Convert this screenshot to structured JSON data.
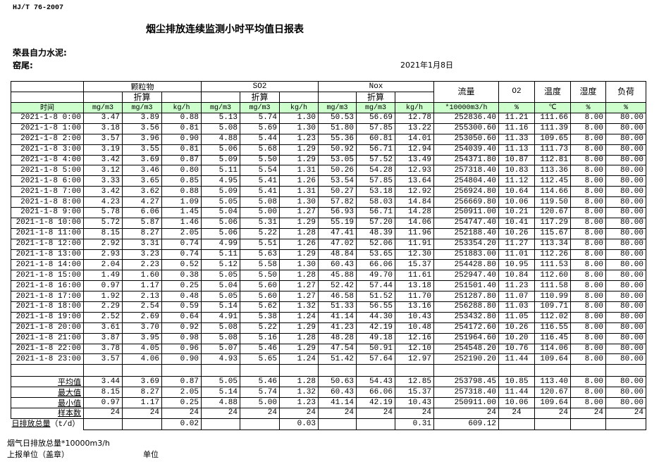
{
  "header": {
    "standard": "HJ/T  76-2007",
    "title": "烟尘排放连续监测小时平均值日报表",
    "company": "荣县自力水泥:",
    "kiln": "窑尾:",
    "date": "2021年1月8日"
  },
  "table": {
    "groups": [
      "颗粒物",
      "SO2",
      "Nox"
    ],
    "converted_label": "折算",
    "single_headers": [
      "流量",
      "O2",
      "温度",
      "湿度",
      "负荷"
    ],
    "time_label": "时间",
    "units": [
      "mg/m3",
      "mg/m3",
      "kg/h",
      "mg/m3",
      "mg/m3",
      "kg/h",
      "mg/m3",
      "mg/m3",
      "kg/h",
      "*10000m3/h",
      "%",
      "℃",
      "%",
      "%"
    ],
    "header_bg": "#ccffcc",
    "rows": [
      [
        "2021-1-8 0:00",
        "3.47",
        "3.89",
        "0.88",
        "5.13",
        "5.74",
        "1.30",
        "50.53",
        "56.69",
        "12.78",
        "252836.40",
        "11.21",
        "111.66",
        "8.00",
        "80.00"
      ],
      [
        "2021-1-8 1:00",
        "3.18",
        "3.56",
        "0.81",
        "5.08",
        "5.69",
        "1.30",
        "51.80",
        "57.85",
        "13.22",
        "255300.60",
        "11.16",
        "111.39",
        "8.00",
        "80.00"
      ],
      [
        "2021-1-8 2:00",
        "3.57",
        "3.96",
        "0.90",
        "4.88",
        "5.44",
        "1.23",
        "55.36",
        "60.81",
        "14.01",
        "253050.60",
        "11.33",
        "109.65",
        "8.00",
        "80.00"
      ],
      [
        "2021-1-8 3:00",
        "3.19",
        "3.55",
        "0.81",
        "5.06",
        "5.68",
        "1.29",
        "50.92",
        "56.71",
        "12.94",
        "254039.40",
        "11.13",
        "111.73",
        "8.00",
        "80.00"
      ],
      [
        "2021-1-8 4:00",
        "3.42",
        "3.69",
        "0.87",
        "5.09",
        "5.50",
        "1.29",
        "53.05",
        "57.52",
        "13.49",
        "254371.80",
        "10.87",
        "112.81",
        "8.00",
        "80.00"
      ],
      [
        "2021-1-8 5:00",
        "3.12",
        "3.46",
        "0.80",
        "5.11",
        "5.54",
        "1.31",
        "50.26",
        "54.28",
        "12.93",
        "257318.40",
        "10.83",
        "113.36",
        "8.00",
        "80.00"
      ],
      [
        "2021-1-8 6:00",
        "3.33",
        "3.65",
        "0.85",
        "4.95",
        "5.41",
        "1.26",
        "53.54",
        "57.85",
        "13.64",
        "254804.40",
        "11.12",
        "112.45",
        "8.00",
        "80.00"
      ],
      [
        "2021-1-8 7:00",
        "3.42",
        "3.62",
        "0.88",
        "5.09",
        "5.41",
        "1.31",
        "50.27",
        "53.18",
        "12.92",
        "256924.80",
        "10.64",
        "114.66",
        "8.00",
        "80.00"
      ],
      [
        "2021-1-8 8:00",
        "4.23",
        "4.27",
        "1.09",
        "5.05",
        "5.08",
        "1.30",
        "57.82",
        "58.03",
        "14.84",
        "256669.80",
        "10.06",
        "119.50",
        "8.00",
        "80.00"
      ],
      [
        "2021-1-8 9:00",
        "5.78",
        "6.06",
        "1.45",
        "5.04",
        "5.00",
        "1.27",
        "56.93",
        "56.71",
        "14.28",
        "250911.00",
        "10.21",
        "120.67",
        "8.00",
        "80.00"
      ],
      [
        "2021-1-8 10:00",
        "5.72",
        "5.87",
        "1.46",
        "5.06",
        "5.31",
        "1.29",
        "55.19",
        "57.20",
        "14.06",
        "254747.40",
        "10.41",
        "117.29",
        "8.00",
        "80.00"
      ],
      [
        "2021-1-8 11:00",
        "8.15",
        "8.27",
        "2.05",
        "5.06",
        "5.22",
        "1.28",
        "47.41",
        "48.39",
        "11.96",
        "252188.40",
        "10.26",
        "115.67",
        "8.00",
        "80.00"
      ],
      [
        "2021-1-8 12:00",
        "2.92",
        "3.31",
        "0.74",
        "4.99",
        "5.51",
        "1.26",
        "47.02",
        "52.06",
        "11.91",
        "253354.20",
        "11.27",
        "113.34",
        "8.00",
        "80.00"
      ],
      [
        "2021-1-8 13:00",
        "2.93",
        "3.23",
        "0.74",
        "5.11",
        "5.63",
        "1.29",
        "48.84",
        "53.65",
        "12.30",
        "251883.00",
        "11.01",
        "112.26",
        "8.00",
        "80.00"
      ],
      [
        "2021-1-8 14:00",
        "2.04",
        "2.23",
        "0.52",
        "5.12",
        "5.58",
        "1.30",
        "60.43",
        "66.06",
        "15.37",
        "254428.80",
        "10.95",
        "111.53",
        "8.00",
        "80.00"
      ],
      [
        "2021-1-8 15:00",
        "1.49",
        "1.60",
        "0.38",
        "5.05",
        "5.50",
        "1.28",
        "45.88",
        "49.70",
        "11.61",
        "252947.40",
        "10.84",
        "112.60",
        "8.00",
        "80.00"
      ],
      [
        "2021-1-8 16:00",
        "0.97",
        "1.17",
        "0.25",
        "5.04",
        "5.60",
        "1.27",
        "52.42",
        "57.44",
        "13.18",
        "251501.40",
        "11.23",
        "111.58",
        "8.00",
        "80.00"
      ],
      [
        "2021-1-8 17:00",
        "1.92",
        "2.13",
        "0.48",
        "5.05",
        "5.60",
        "1.27",
        "46.58",
        "51.52",
        "11.70",
        "251287.80",
        "11.07",
        "110.99",
        "8.00",
        "80.00"
      ],
      [
        "2021-1-8 18:00",
        "2.29",
        "2.54",
        "0.59",
        "5.14",
        "5.62",
        "1.32",
        "51.33",
        "56.55",
        "13.16",
        "256288.80",
        "11.03",
        "109.71",
        "8.00",
        "80.00"
      ],
      [
        "2021-1-8 19:00",
        "2.52",
        "2.69",
        "0.64",
        "4.91",
        "5.38",
        "1.24",
        "41.14",
        "44.30",
        "10.43",
        "253432.80",
        "11.05",
        "112.02",
        "8.00",
        "80.00"
      ],
      [
        "2021-1-8 20:00",
        "3.61",
        "3.70",
        "0.92",
        "5.08",
        "5.22",
        "1.29",
        "41.23",
        "42.19",
        "10.48",
        "254172.60",
        "10.26",
        "116.55",
        "8.00",
        "80.00"
      ],
      [
        "2021-1-8 21:00",
        "3.87",
        "3.95",
        "0.98",
        "5.08",
        "5.16",
        "1.28",
        "48.28",
        "49.18",
        "12.16",
        "251964.60",
        "10.20",
        "116.45",
        "8.00",
        "80.00"
      ],
      [
        "2021-1-8 22:00",
        "3.78",
        "4.05",
        "0.96",
        "5.07",
        "5.46",
        "1.29",
        "47.54",
        "50.91",
        "12.10",
        "254548.20",
        "10.76",
        "114.06",
        "8.00",
        "80.00"
      ],
      [
        "2021-1-8 23:00",
        "3.57",
        "4.06",
        "0.90",
        "4.93",
        "5.65",
        "1.24",
        "51.42",
        "57.64",
        "12.97",
        "252190.20",
        "11.44",
        "109.64",
        "8.00",
        "80.00"
      ]
    ],
    "stats": [
      [
        "平均值",
        "3.44",
        "3.69",
        "0.87",
        "5.05",
        "5.46",
        "1.28",
        "50.63",
        "54.43",
        "12.85",
        "253798.45",
        "10.85",
        "113.40",
        "8.00",
        "80.00"
      ],
      [
        "最大值",
        "8.15",
        "8.27",
        "2.05",
        "5.14",
        "5.74",
        "1.32",
        "60.43",
        "66.06",
        "15.37",
        "257318.40",
        "11.44",
        "120.67",
        "8.00",
        "80.00"
      ],
      [
        "最小值",
        "0.97",
        "1.17",
        "0.25",
        "4.88",
        "5.00",
        "1.23",
        "41.14",
        "42.19",
        "10.43",
        "250911.00",
        "10.06",
        "109.64",
        "8.00",
        "80.00"
      ],
      [
        "样本数",
        "24",
        "24",
        "24",
        "24",
        "24",
        "24",
        "24",
        "24",
        "24",
        "24",
        "24",
        "24",
        "24",
        "24"
      ]
    ],
    "daily": {
      "label": "日排放总量",
      "unit": "（t/d）",
      "values": [
        "",
        "",
        "0.02",
        "",
        "",
        "0.03",
        "",
        "",
        "0.31",
        "609.12",
        "",
        "",
        "",
        ""
      ]
    }
  },
  "footer": {
    "flue_total": "烟气日排放总量*10000m3/h",
    "reporter": "上报单位（盖章）",
    "unit": "单位"
  }
}
